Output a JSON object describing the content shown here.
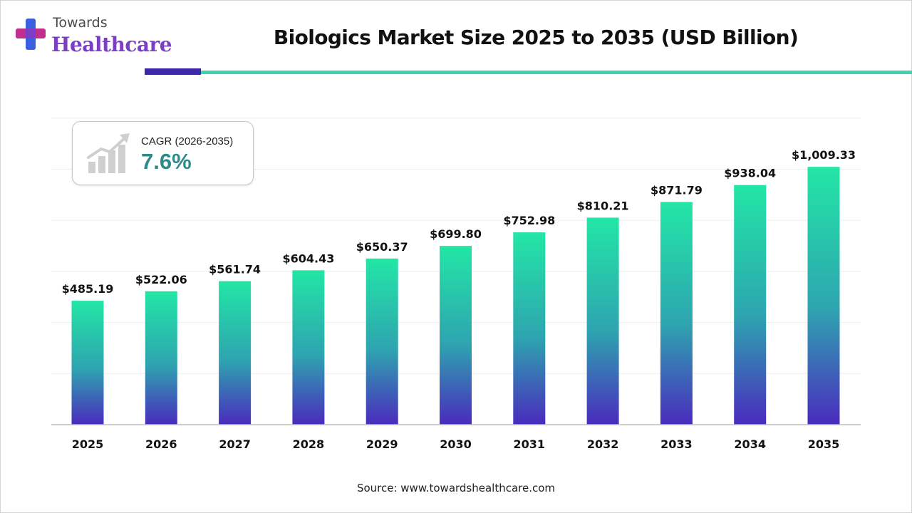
{
  "brand": {
    "line1": "Towards",
    "line2": "Healthcare",
    "colors": {
      "primary": "#7a3fc4",
      "accent": "#3b27a8",
      "cross_blue": "#3a5fe0",
      "cross_pink": "#c02e8e"
    }
  },
  "header": {
    "title": "Biologics Market Size 2025 to 2035 (USD Billion)"
  },
  "cagr": {
    "label": "CAGR (2026-2035)",
    "value": "7.6%",
    "icon": "growth-chart-icon"
  },
  "chart_data": {
    "type": "bar",
    "title": "Biologics Market Size 2025 to 2035 (USD Billion)",
    "xlabel": "",
    "ylabel": "",
    "categories": [
      "2025",
      "2026",
      "2027",
      "2028",
      "2029",
      "2030",
      "2031",
      "2032",
      "2033",
      "2034",
      "2035"
    ],
    "values": [
      485.19,
      522.06,
      561.74,
      604.43,
      650.37,
      699.8,
      752.98,
      810.21,
      871.79,
      938.04,
      1009.33
    ],
    "value_labels": [
      "$485.19",
      "$522.06",
      "$561.74",
      "$604.43",
      "$650.37",
      "$699.80",
      "$752.98",
      "$810.21",
      "$871.79",
      "$938.04",
      "$1,009.33"
    ],
    "ylim": [
      0,
      1200
    ],
    "grid": true,
    "legend": "none",
    "colors": {
      "bar_top": "#23e6a6",
      "bar_mid": "#2ea4b0",
      "bar_bottom": "#4a2bbd"
    }
  },
  "footer": {
    "source": "Source: www.towardshealthcare.com"
  }
}
